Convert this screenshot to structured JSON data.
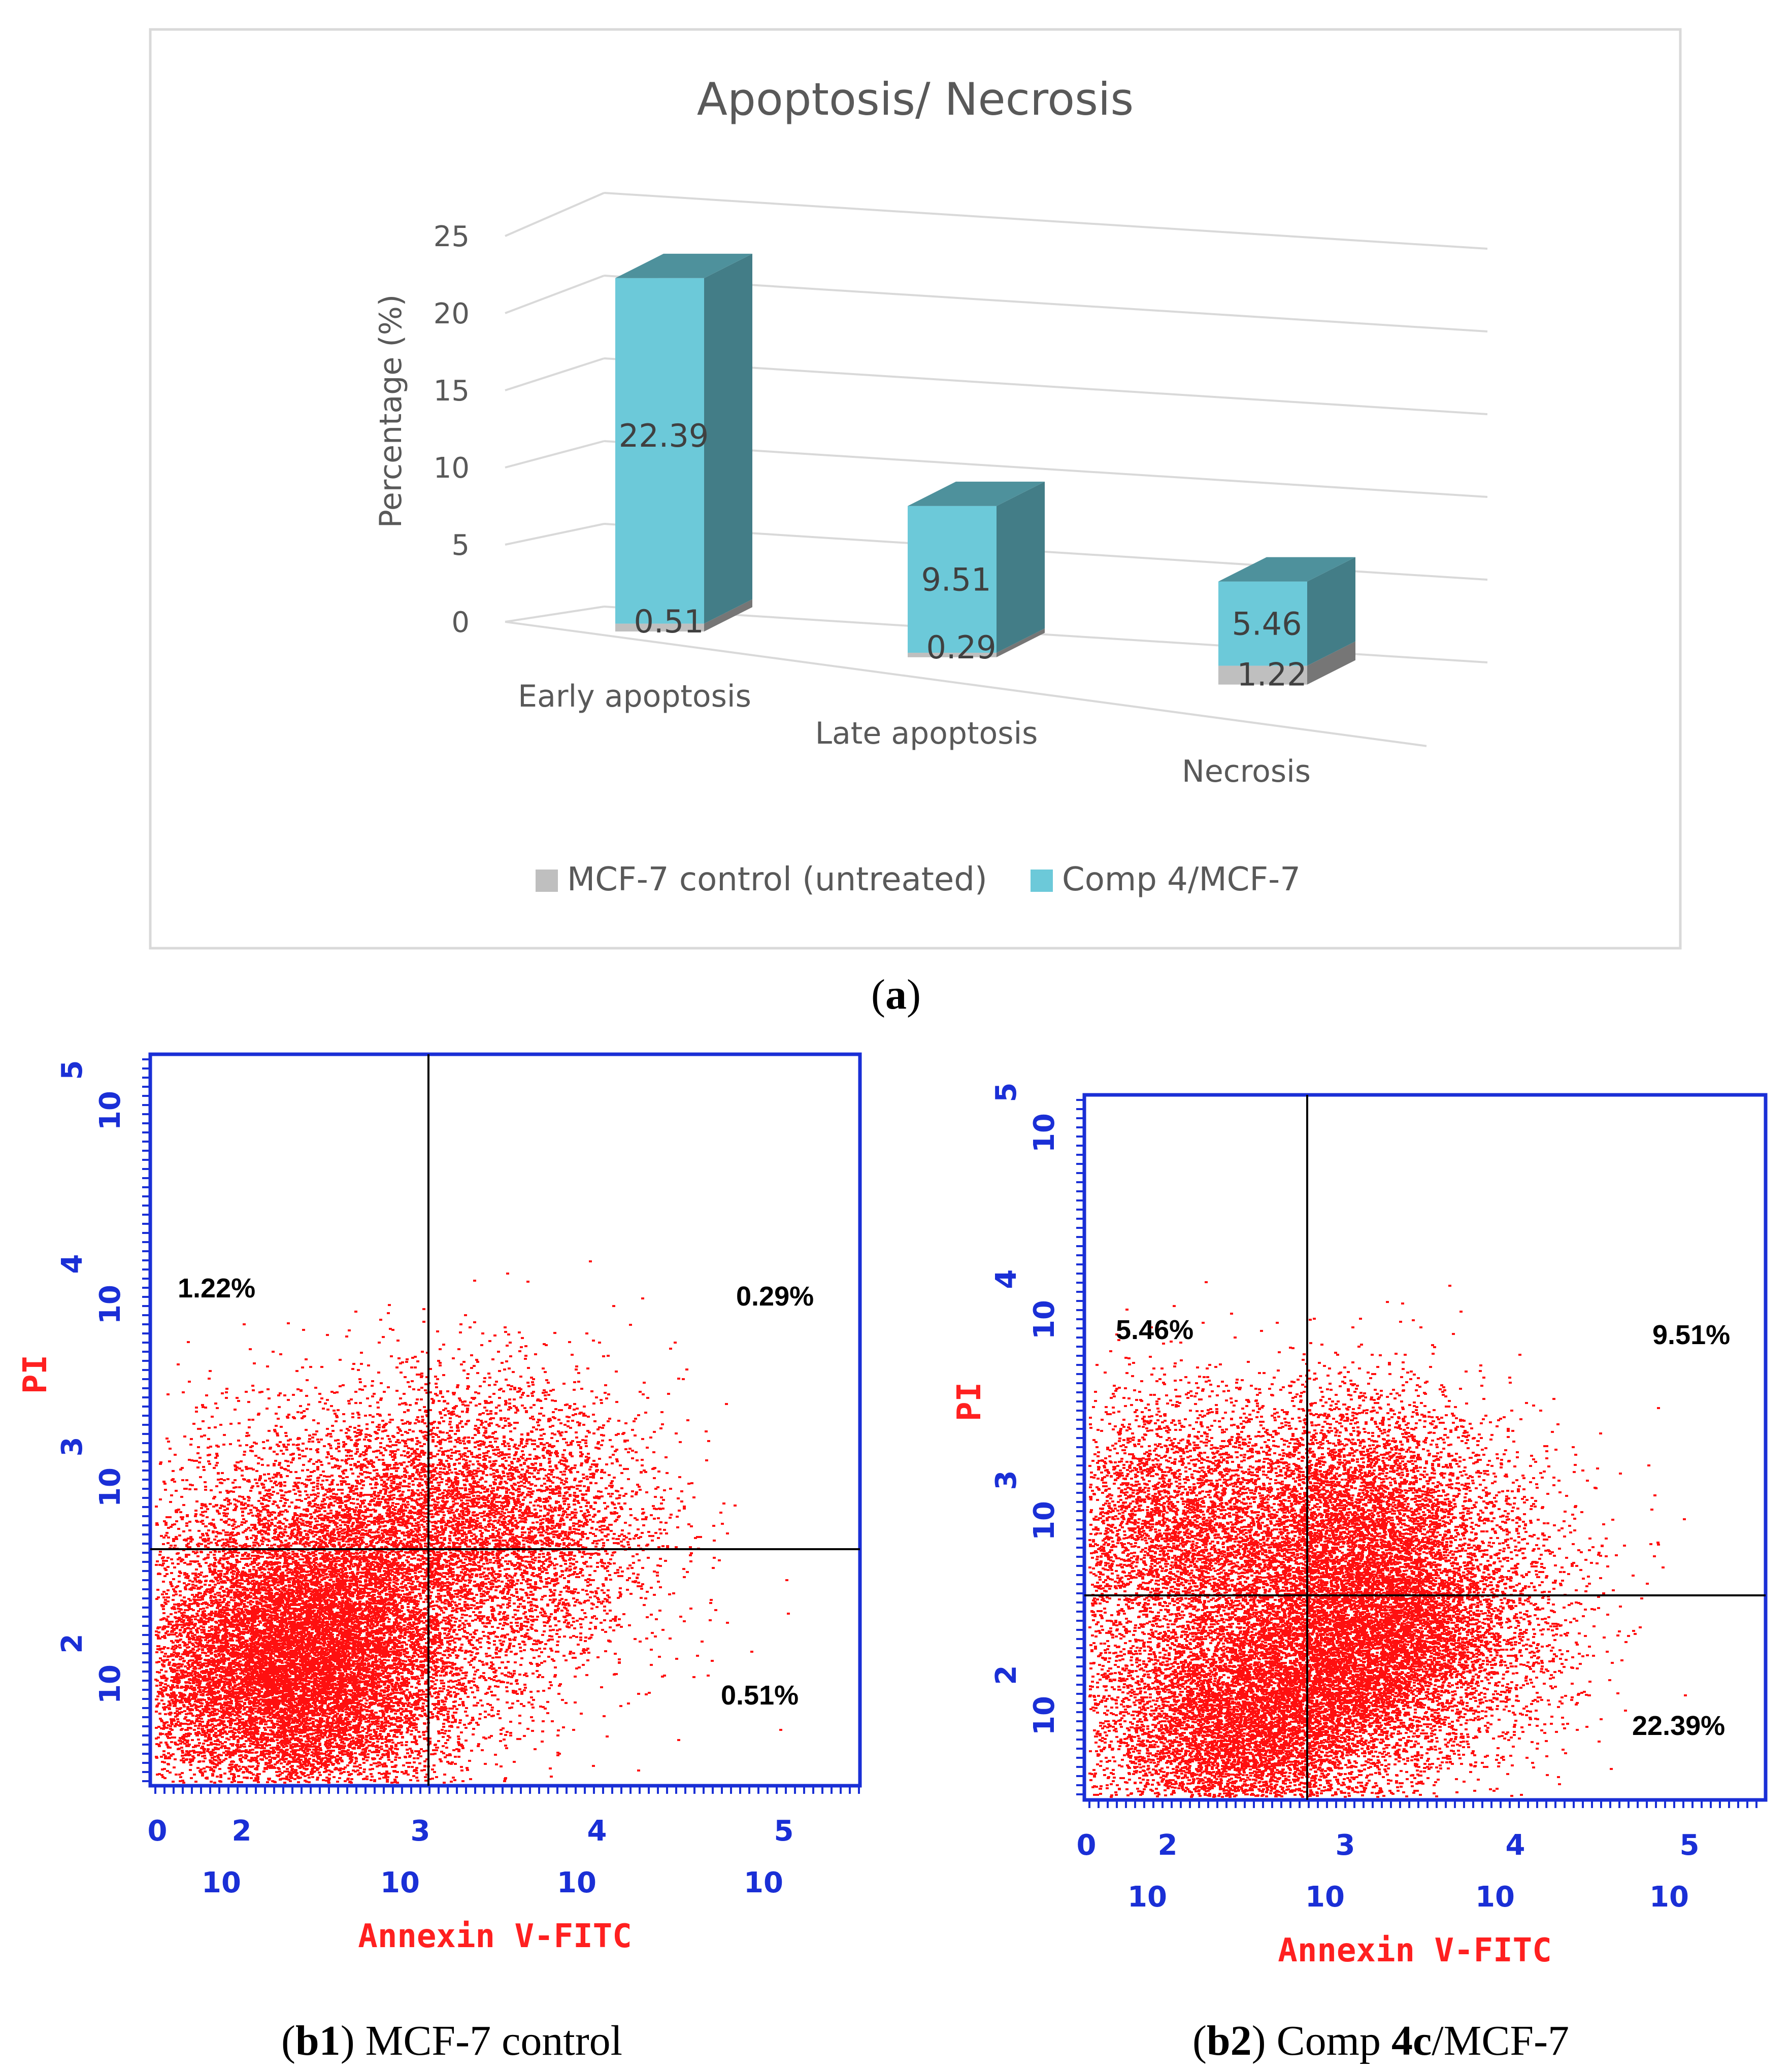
{
  "chart_data": [
    {
      "type": "bar",
      "variant": "3d-stacked",
      "title": "Apoptosis/ Necrosis",
      "ylabel": "Percentage (%)",
      "xlabel": "",
      "ylim": [
        0,
        25
      ],
      "yticks": [
        "0",
        "5",
        "10",
        "15",
        "20",
        "25"
      ],
      "categories": [
        "Early apoptosis",
        "Late apoptosis",
        "Necrosis"
      ],
      "series": [
        {
          "name": "MCF-7 control (untreated)",
          "color": "#bfbfbf",
          "values": [
            0.51,
            0.29,
            1.22
          ]
        },
        {
          "name": "Comp 4/MCF-7",
          "color": "#6cc9d9",
          "values": [
            22.39,
            9.51,
            5.46
          ]
        }
      ],
      "value_labels": [
        [
          "0.51",
          "0.29",
          "1.22"
        ],
        [
          "22.39",
          "9.51",
          "5.46"
        ]
      ],
      "legend_position": "bottom"
    },
    {
      "type": "scatter",
      "variant": "flow-cytometry-quadrant",
      "xlabel": "Annexin V-FITC",
      "ylabel": "PI",
      "x_ticks": [
        {
          "exp": "0",
          "base": ""
        },
        {
          "exp": "2",
          "base": "10"
        },
        {
          "exp": "3",
          "base": "10"
        },
        {
          "exp": "4",
          "base": "10"
        },
        {
          "exp": "5",
          "base": "10"
        }
      ],
      "y_ticks": [
        {
          "exp": "2",
          "base": "10"
        },
        {
          "exp": "3",
          "base": "10"
        },
        {
          "exp": "4",
          "base": "10"
        },
        {
          "exp": "5",
          "base": "10"
        }
      ],
      "quadrants": {
        "upper_left": "1.22%",
        "upper_right": "0.29%",
        "lower_right": "0.51%"
      },
      "point_color": "#ff1010"
    },
    {
      "type": "scatter",
      "variant": "flow-cytometry-quadrant",
      "xlabel": "Annexin V-FITC",
      "ylabel": "PI",
      "x_ticks": [
        {
          "exp": "0",
          "base": ""
        },
        {
          "exp": "2",
          "base": "10"
        },
        {
          "exp": "3",
          "base": "10"
        },
        {
          "exp": "4",
          "base": "10"
        },
        {
          "exp": "5",
          "base": "10"
        }
      ],
      "y_ticks": [
        {
          "exp": "2",
          "base": "10"
        },
        {
          "exp": "3",
          "base": "10"
        },
        {
          "exp": "4",
          "base": "10"
        },
        {
          "exp": "5",
          "base": "10"
        }
      ],
      "quadrants": {
        "upper_left": "5.46%",
        "upper_right": "9.51%",
        "lower_right": "22.39%"
      },
      "point_color": "#ff1010"
    }
  ],
  "captions": {
    "a": {
      "open": "(",
      "bold": "a",
      "close": ")",
      "rest": ""
    },
    "b1": {
      "open": "(",
      "bold": "b1",
      "close": ")",
      "rest": " MCF-7 control"
    },
    "b2": {
      "open": "(",
      "bold": "b2",
      "close": ")",
      "rest_pre": " Comp ",
      "bold2": "4c",
      "rest_post": "/MCF-7"
    }
  }
}
